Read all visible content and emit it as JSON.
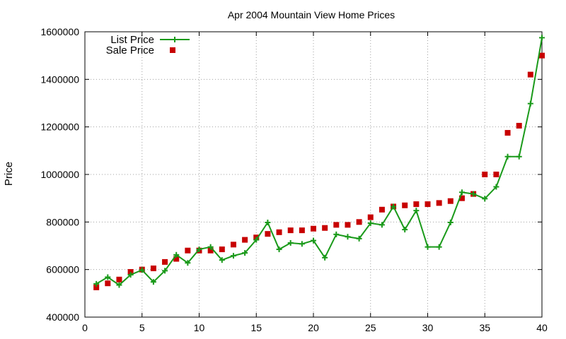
{
  "chart_data": {
    "type": "line",
    "title": "Apr 2004 Mountain View Home Prices",
    "xlabel": "",
    "ylabel": "Price",
    "xlim": [
      0,
      40
    ],
    "ylim": [
      400000,
      1600000
    ],
    "xticks": [
      0,
      5,
      10,
      15,
      20,
      25,
      30,
      35,
      40
    ],
    "yticks": [
      400000,
      600000,
      800000,
      1000000,
      1200000,
      1400000,
      1600000
    ],
    "grid": true,
    "legend_position": "top-left",
    "series": [
      {
        "name": "List Price",
        "style": "line-with-plus-markers",
        "color": "#1a9a1a",
        "x": [
          1,
          2,
          3,
          4,
          5,
          6,
          7,
          8,
          9,
          10,
          11,
          12,
          13,
          14,
          15,
          16,
          17,
          18,
          19,
          20,
          21,
          22,
          23,
          24,
          25,
          26,
          27,
          28,
          29,
          30,
          31,
          32,
          33,
          34,
          35,
          36,
          37,
          38,
          39,
          40
        ],
        "values": [
          540000,
          568000,
          535000,
          578000,
          598000,
          548000,
          595000,
          662000,
          628000,
          685000,
          695000,
          640000,
          658000,
          670000,
          725000,
          798000,
          685000,
          712000,
          708000,
          722000,
          650000,
          748000,
          738000,
          730000,
          795000,
          788000,
          865000,
          768000,
          848000,
          695000,
          695000,
          798000,
          925000,
          918000,
          898000,
          948000,
          1075000,
          1075000,
          1298000,
          1575000
        ]
      },
      {
        "name": "Sale Price",
        "style": "square-markers",
        "color": "#c80000",
        "x": [
          1,
          2,
          3,
          4,
          5,
          6,
          7,
          8,
          9,
          10,
          11,
          12,
          13,
          14,
          15,
          16,
          17,
          18,
          19,
          20,
          21,
          22,
          23,
          24,
          25,
          26,
          27,
          28,
          29,
          30,
          31,
          32,
          33,
          34,
          35,
          36,
          37,
          38,
          39,
          40
        ],
        "values": [
          525000,
          542000,
          558000,
          590000,
          600000,
          605000,
          632000,
          645000,
          680000,
          680000,
          680000,
          685000,
          705000,
          725000,
          735000,
          750000,
          757000,
          765000,
          765000,
          772000,
          775000,
          788000,
          788000,
          800000,
          820000,
          852000,
          865000,
          870000,
          875000,
          875000,
          880000,
          888000,
          900000,
          918000,
          1000000,
          1000000,
          1175000,
          1205000,
          1420000,
          1500000
        ]
      }
    ]
  }
}
